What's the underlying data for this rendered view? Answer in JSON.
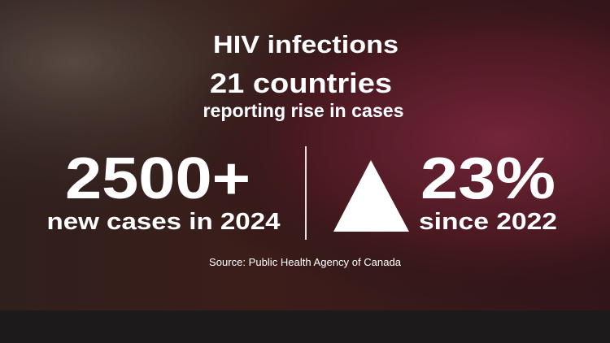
{
  "title": "HIV infections",
  "headline": "21 countries",
  "subheadline": "reporting rise in cases",
  "left": {
    "value": "2500+",
    "label": "new cases in 2024"
  },
  "right": {
    "value": "23%",
    "label": "since 2022"
  },
  "source": "Source:  Public Health Agency of Canada"
}
